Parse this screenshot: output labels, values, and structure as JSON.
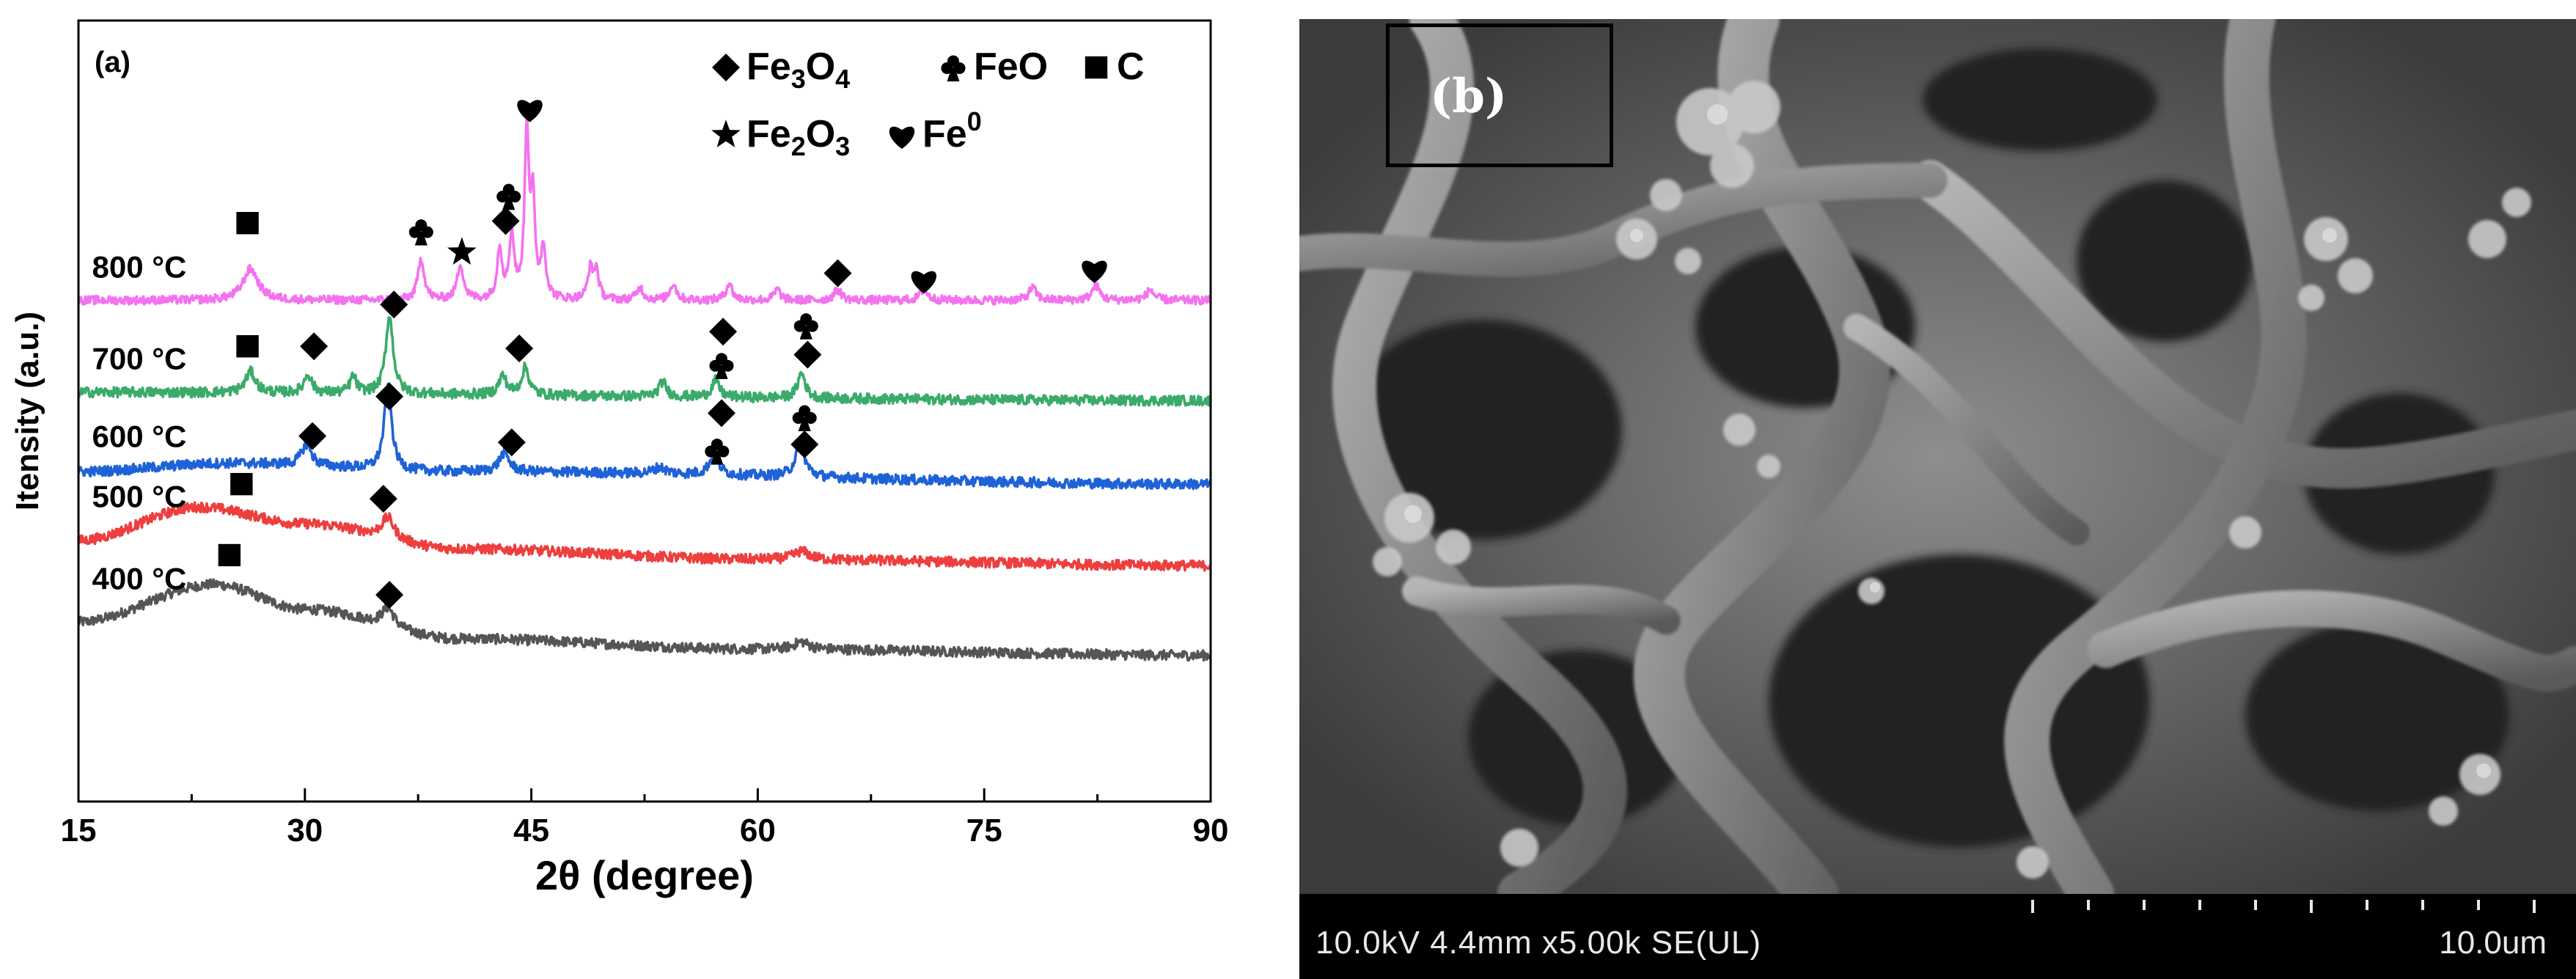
{
  "chart_data": {
    "type": "line",
    "panel_label": "(a)",
    "xlabel": "2θ (degree)",
    "ylabel": "Itensity (a.u.)",
    "xlim": [
      15,
      90
    ],
    "xticks": [
      15,
      30,
      45,
      60,
      75,
      90
    ],
    "y_ticks_shown": false,
    "legend": {
      "placement": "top-right",
      "entries": [
        {
          "symbol": "diamond",
          "label": "Fe3O4",
          "base": "Fe",
          "sub1": "3",
          "mid": "O",
          "sub2": "4"
        },
        {
          "symbol": "club",
          "label": "FeO",
          "base": "FeO"
        },
        {
          "symbol": "square",
          "label": "C",
          "base": "C"
        },
        {
          "symbol": "star",
          "label": "Fe2O3",
          "base": "Fe",
          "sub1": "2",
          "mid": "O",
          "sub2": "3"
        },
        {
          "symbol": "heart",
          "label": "Fe0",
          "base": "Fe",
          "sup": "0"
        }
      ]
    },
    "series": [
      {
        "name": "400 °C",
        "color": "#555555",
        "offset": 0.0,
        "noise": 0.012,
        "baseline": [
          [
            15,
            0.08
          ],
          [
            24,
            0.17
          ],
          [
            30,
            0.11
          ],
          [
            40,
            0.04
          ],
          [
            60,
            0.015
          ],
          [
            90,
            0.0
          ]
        ],
        "peaks": [
          [
            35.5,
            0.045,
            0.5
          ],
          [
            62.9,
            0.018,
            0.6
          ]
        ],
        "markers": [
          {
            "x": 25,
            "y": 0.24,
            "symbol": "square"
          },
          {
            "x": 35.6,
            "y": 0.145,
            "symbol": "diamond"
          }
        ]
      },
      {
        "name": "500 °C",
        "color": "#ee3e3e",
        "offset": 0.215,
        "noise": 0.012,
        "baseline": [
          [
            15,
            0.06
          ],
          [
            23,
            0.14
          ],
          [
            30,
            0.1
          ],
          [
            40,
            0.04
          ],
          [
            60,
            0.015
          ],
          [
            90,
            0.0
          ]
        ],
        "peaks": [
          [
            35.5,
            0.05,
            0.5
          ],
          [
            62.9,
            0.02,
            0.6
          ]
        ],
        "markers": [
          {
            "x": 25.8,
            "y": 0.195,
            "symbol": "square"
          },
          {
            "x": 35.2,
            "y": 0.16,
            "symbol": "diamond"
          }
        ]
      },
      {
        "name": "600 °C",
        "color": "#1e62d8",
        "offset": 0.41,
        "noise": 0.012,
        "baseline": [
          [
            15,
            0.03
          ],
          [
            25,
            0.05
          ],
          [
            40,
            0.03
          ],
          [
            90,
            0.0
          ]
        ],
        "peaks": [
          [
            30.1,
            0.05,
            0.4
          ],
          [
            35.5,
            0.2,
            0.3
          ],
          [
            43.2,
            0.045,
            0.4
          ],
          [
            53.5,
            0.015,
            0.5
          ],
          [
            57.1,
            0.045,
            0.4
          ],
          [
            62.8,
            0.075,
            0.4
          ]
        ],
        "markers": [
          {
            "x": 30.5,
            "y": 0.115,
            "symbol": "diamond"
          },
          {
            "x": 35.6,
            "y": 0.21,
            "symbol": "diamond"
          },
          {
            "x": 43.7,
            "y": 0.1,
            "symbol": "diamond"
          },
          {
            "x": 57.3,
            "y": 0.08,
            "symbol": "club"
          },
          {
            "x": 57.6,
            "y": 0.17,
            "symbol": "diamond"
          },
          {
            "x": 63.1,
            "y": 0.095,
            "symbol": "diamond"
          },
          {
            "x": 63.1,
            "y": 0.16,
            "symbol": "club"
          }
        ]
      },
      {
        "name": "700 °C",
        "color": "#3aab6a",
        "offset": 0.61,
        "noise": 0.012,
        "baseline": [
          [
            15,
            0.02
          ],
          [
            90,
            0.0
          ]
        ],
        "peaks": [
          [
            26.4,
            0.05,
            0.4
          ],
          [
            30.2,
            0.045,
            0.3
          ],
          [
            33.2,
            0.04,
            0.25
          ],
          [
            35.6,
            0.185,
            0.3
          ],
          [
            43.1,
            0.045,
            0.3
          ],
          [
            44.6,
            0.065,
            0.3
          ],
          [
            53.7,
            0.035,
            0.3
          ],
          [
            57.2,
            0.04,
            0.3
          ],
          [
            62.9,
            0.06,
            0.3
          ]
        ],
        "markers": [
          {
            "x": 26.2,
            "y": 0.13,
            "symbol": "square"
          },
          {
            "x": 30.6,
            "y": 0.13,
            "symbol": "diamond"
          },
          {
            "x": 35.9,
            "y": 0.23,
            "symbol": "diamond"
          },
          {
            "x": 44.2,
            "y": 0.125,
            "symbol": "diamond"
          },
          {
            "x": 57.6,
            "y": 0.085,
            "symbol": "club"
          },
          {
            "x": 57.7,
            "y": 0.165,
            "symbol": "diamond"
          },
          {
            "x": 63.3,
            "y": 0.11,
            "symbol": "diamond"
          },
          {
            "x": 63.2,
            "y": 0.18,
            "symbol": "club"
          }
        ]
      },
      {
        "name": "800 °C",
        "color": "#f472f0",
        "offset": 0.85,
        "noise": 0.01,
        "baseline": [
          [
            15,
            0.0
          ],
          [
            90,
            0.0
          ]
        ],
        "peaks": [
          [
            26.4,
            0.075,
            0.6
          ],
          [
            37.7,
            0.1,
            0.25
          ],
          [
            40.3,
            0.085,
            0.25
          ],
          [
            42.9,
            0.12,
            0.2
          ],
          [
            43.7,
            0.15,
            0.2
          ],
          [
            44.7,
            0.4,
            0.17
          ],
          [
            45.1,
            0.22,
            0.17
          ],
          [
            45.8,
            0.12,
            0.2
          ],
          [
            48.9,
            0.07,
            0.2
          ],
          [
            49.3,
            0.07,
            0.2
          ],
          [
            52.2,
            0.03,
            0.25
          ],
          [
            54.4,
            0.04,
            0.25
          ],
          [
            58.1,
            0.04,
            0.25
          ],
          [
            61.3,
            0.025,
            0.25
          ],
          [
            65.3,
            0.025,
            0.3
          ],
          [
            71.0,
            0.025,
            0.3
          ],
          [
            78.2,
            0.03,
            0.3
          ],
          [
            82.4,
            0.035,
            0.3
          ],
          [
            86.0,
            0.025,
            0.3
          ]
        ],
        "markers": [
          {
            "x": 26.2,
            "y": 0.185,
            "symbol": "square"
          },
          {
            "x": 37.7,
            "y": 0.165,
            "symbol": "club"
          },
          {
            "x": 40.4,
            "y": 0.115,
            "symbol": "star"
          },
          {
            "x": 43.3,
            "y": 0.19,
            "symbol": "diamond"
          },
          {
            "x": 43.5,
            "y": 0.25,
            "symbol": "club"
          },
          {
            "x": 44.9,
            "y": 0.46,
            "symbol": "heart"
          },
          {
            "x": 65.3,
            "y": 0.065,
            "symbol": "diamond"
          },
          {
            "x": 71.0,
            "y": 0.05,
            "symbol": "heart"
          },
          {
            "x": 82.3,
            "y": 0.075,
            "symbol": "heart"
          }
        ]
      }
    ]
  },
  "sem": {
    "panel_label": "(b)",
    "info": "10.0kV 4.4mm x5.00k SE(UL)",
    "scale_label": "10.0um"
  }
}
